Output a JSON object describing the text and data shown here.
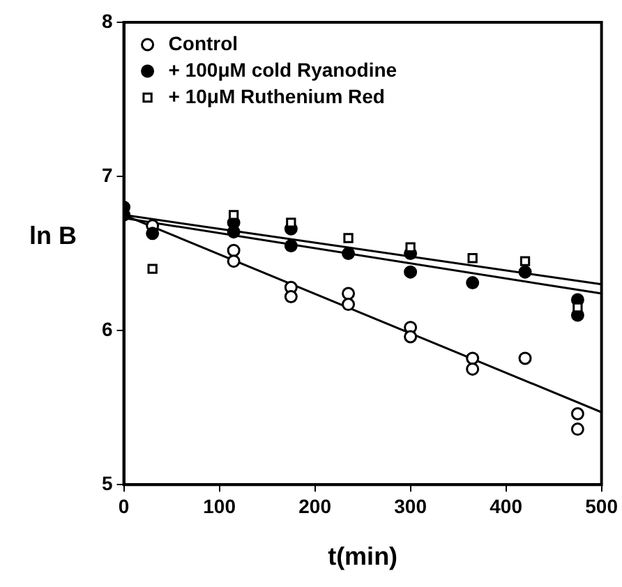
{
  "chart_data": {
    "type": "scatter",
    "xlabel": "t(min)",
    "ylabel": "ln B",
    "xlim": [
      0,
      500
    ],
    "xticks": [
      0,
      100,
      200,
      300,
      400,
      500
    ],
    "ylim": [
      5,
      8
    ],
    "yticks": [
      5,
      6,
      7,
      8
    ],
    "grid": false,
    "legend": "top left",
    "series": [
      {
        "name": "Control",
        "marker": "circle",
        "color": "#ffffff",
        "x": [
          30,
          115,
          115,
          175,
          175,
          235,
          235,
          300,
          300,
          365,
          365,
          420,
          475,
          475
        ],
        "values": [
          6.68,
          6.52,
          6.45,
          6.28,
          6.22,
          6.24,
          6.17,
          6.02,
          5.96,
          5.82,
          5.75,
          5.82,
          5.46,
          5.36
        ]
      },
      {
        "name": "+ 100μM cold Ryanodine",
        "marker": "circle",
        "color": "#000000",
        "x": [
          0,
          0,
          30,
          115,
          115,
          175,
          175,
          235,
          300,
          300,
          365,
          420,
          475,
          475
        ],
        "values": [
          6.8,
          6.75,
          6.63,
          6.7,
          6.64,
          6.66,
          6.55,
          6.5,
          6.5,
          6.38,
          6.31,
          6.38,
          6.2,
          6.1
        ]
      },
      {
        "name": "+ 10μM Ruthenium Red",
        "marker": "square",
        "color": "#ffffff",
        "x": [
          30,
          115,
          175,
          235,
          300,
          365,
          420,
          475
        ],
        "values": [
          6.4,
          6.75,
          6.7,
          6.6,
          6.54,
          6.47,
          6.45,
          6.15
        ]
      },
      {
        "type": "line",
        "marker": "none",
        "color": "#000000",
        "x": [
          0,
          500
        ],
        "values": [
          6.75,
          5.47
        ]
      },
      {
        "type": "line",
        "marker": "none",
        "color": "#000000",
        "x": [
          0,
          500
        ],
        "values": [
          6.75,
          6.3
        ]
      },
      {
        "type": "line",
        "marker": "none",
        "color": "#000000",
        "x": [
          0,
          500
        ],
        "values": [
          6.73,
          6.24
        ]
      }
    ]
  }
}
